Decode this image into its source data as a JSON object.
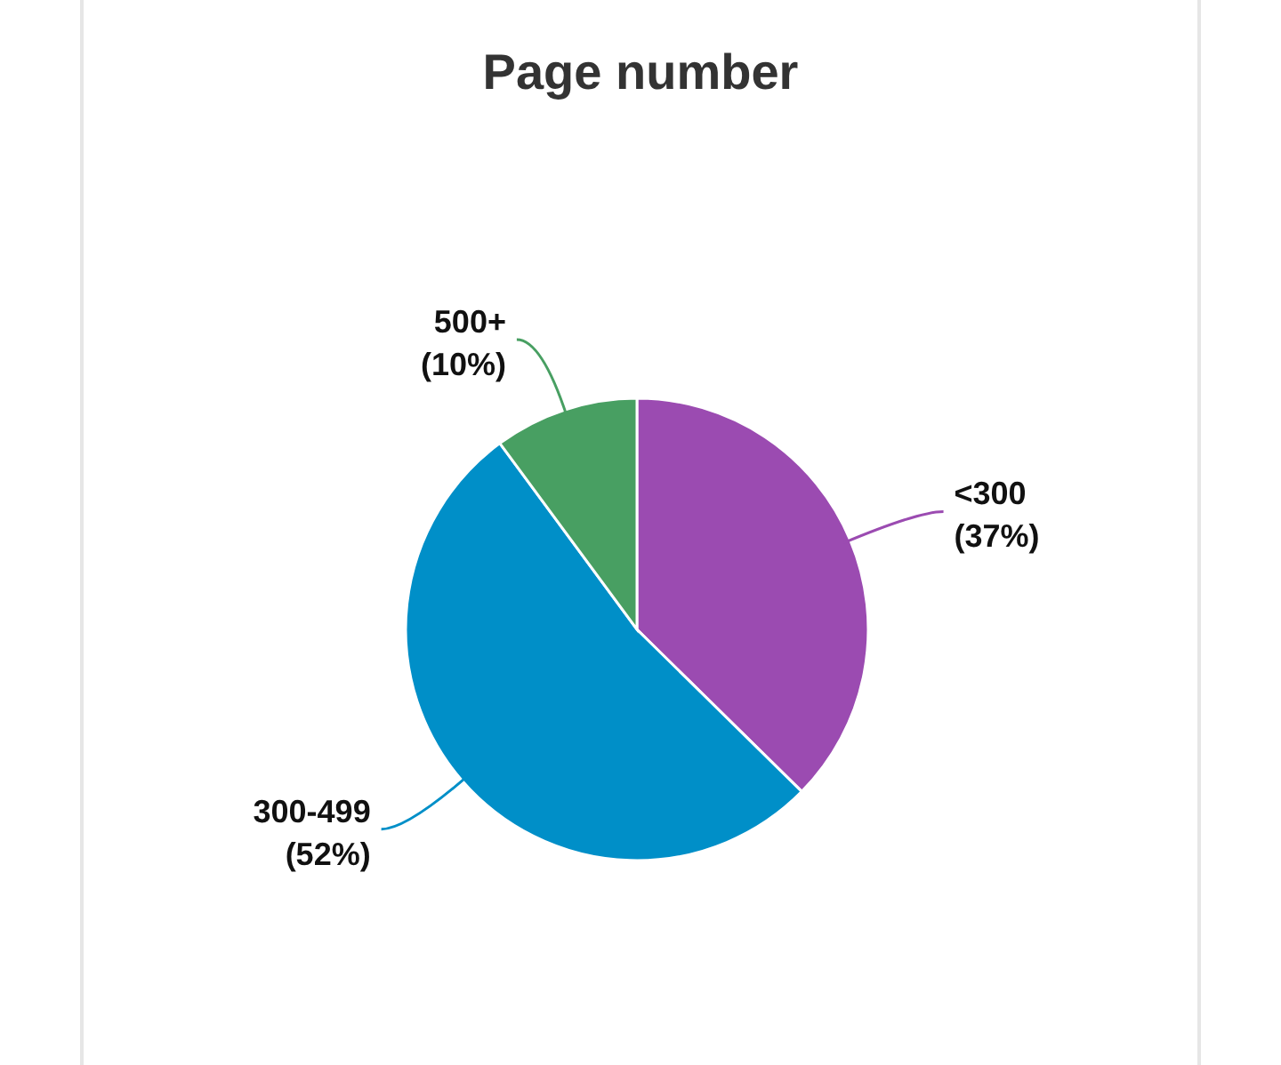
{
  "chart_data": {
    "type": "pie",
    "title": "Page number",
    "categories": [
      "<300",
      "300-499",
      "500+"
    ],
    "values": [
      37,
      52,
      10
    ],
    "colors": [
      "#9b4bb1",
      "#008fc8",
      "#489f62"
    ],
    "value_labels": [
      "(37%)",
      "(52%)",
      "(10%)"
    ]
  }
}
